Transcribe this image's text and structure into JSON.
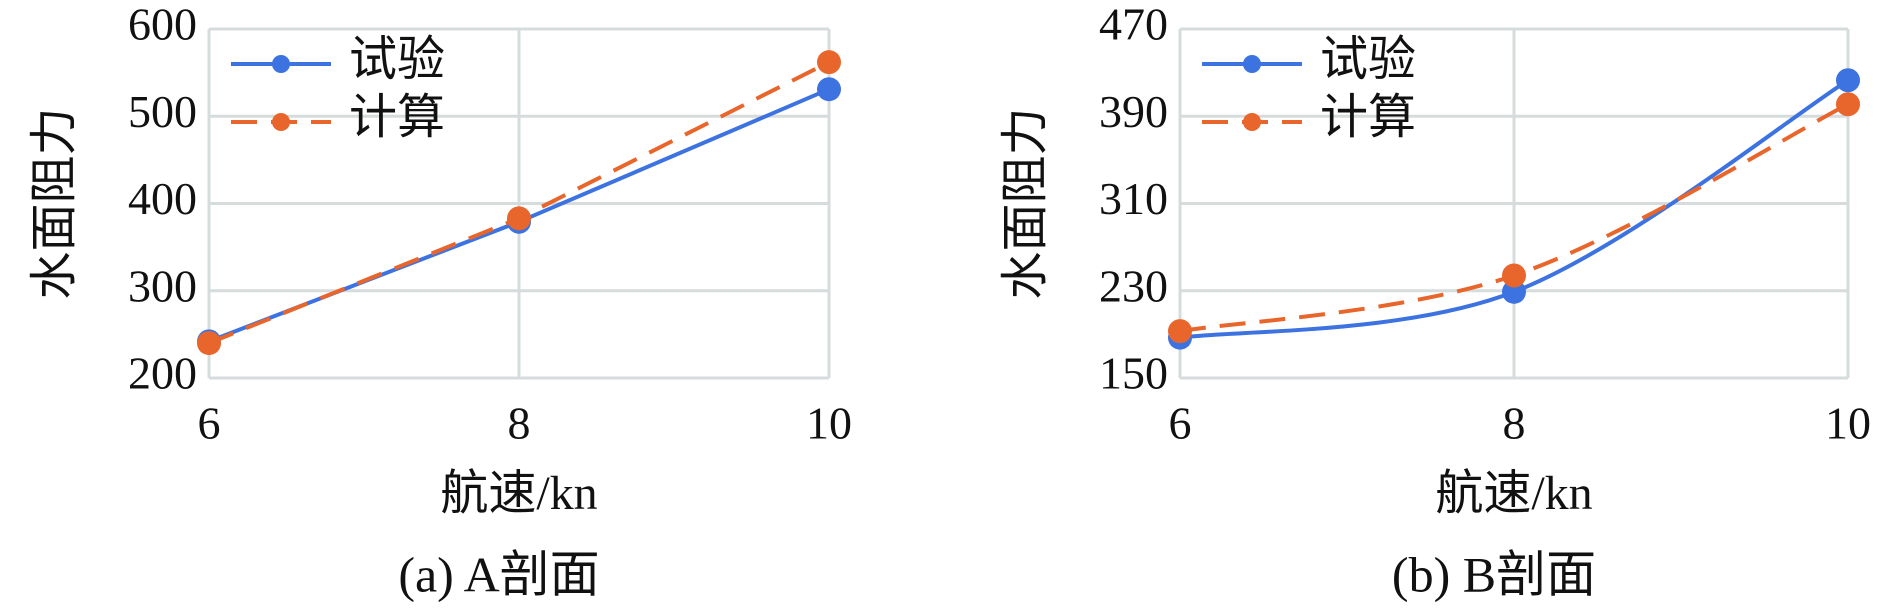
{
  "chart_data": [
    {
      "type": "line",
      "caption": "(a) A剖面",
      "x_label": "航速/kn",
      "y_label": "水面阻力",
      "x": [
        6,
        8,
        10
      ],
      "xlim": [
        6,
        10
      ],
      "xticks": [
        6,
        8,
        10
      ],
      "ylim": [
        200,
        600
      ],
      "yticks": [
        200,
        300,
        400,
        500,
        600
      ],
      "grid": true,
      "smooth": false,
      "legend": "upper left",
      "series": [
        {
          "name": "试验",
          "color": "#3d73e0",
          "dash": false,
          "values": [
            242,
            379,
            531
          ]
        },
        {
          "name": "计算",
          "color": "#e8662c",
          "dash": true,
          "values": [
            240,
            383,
            562
          ]
        }
      ]
    },
    {
      "type": "line",
      "caption": "(b) B剖面",
      "x_label": "航速/kn",
      "y_label": "水面阻力",
      "x": [
        6,
        8,
        10
      ],
      "xlim": [
        6,
        10
      ],
      "xticks": [
        6,
        8,
        10
      ],
      "ylim": [
        150,
        470
      ],
      "yticks": [
        150,
        230,
        310,
        390,
        470
      ],
      "grid": true,
      "smooth": true,
      "legend": "upper left",
      "series": [
        {
          "name": "试验",
          "color": "#3d73e0",
          "dash": false,
          "values": [
            187,
            229,
            423
          ]
        },
        {
          "name": "计算",
          "color": "#e8662c",
          "dash": true,
          "values": [
            193,
            244,
            401
          ]
        }
      ]
    }
  ]
}
